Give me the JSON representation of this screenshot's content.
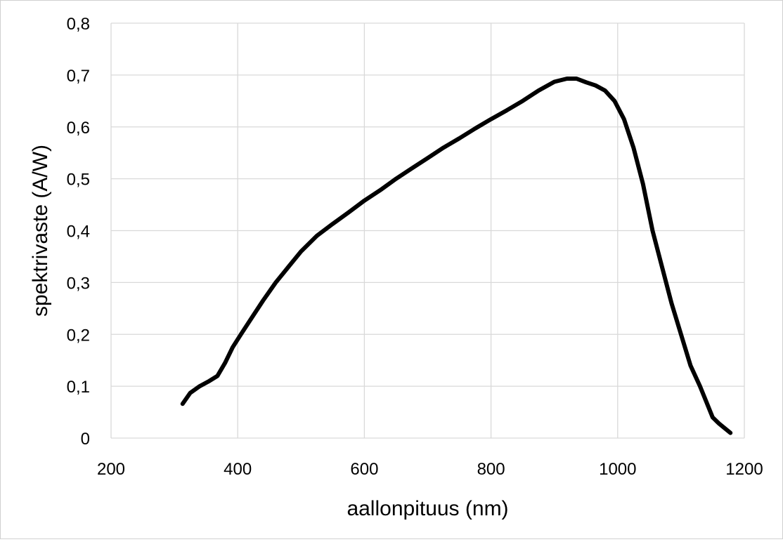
{
  "chart_data": {
    "type": "line",
    "title": "",
    "xlabel": "aallonpituus (nm)",
    "ylabel": "spektrivaste (A/W)",
    "xlim": [
      200,
      1200
    ],
    "ylim": [
      0,
      0.8
    ],
    "x_ticks": [
      "200",
      "400",
      "600",
      "800",
      "1000",
      "1200"
    ],
    "y_ticks": [
      "0",
      "0,1",
      "0,2",
      "0,3",
      "0,4",
      "0,5",
      "0,6",
      "0,7",
      "0,8"
    ],
    "grid": true,
    "legend": "none",
    "series": [
      {
        "color": "#000000",
        "x": [
          313,
          325,
          340,
          355,
          368,
          380,
          392,
          405,
          420,
          440,
          460,
          480,
          500,
          525,
          550,
          575,
          600,
          625,
          650,
          675,
          700,
          725,
          750,
          775,
          800,
          825,
          850,
          875,
          900,
          920,
          935,
          950,
          965,
          980,
          995,
          1010,
          1025,
          1040,
          1055,
          1070,
          1085,
          1100,
          1115,
          1130,
          1140,
          1150,
          1160,
          1170,
          1178
        ],
        "y": [
          0.066,
          0.087,
          0.1,
          0.11,
          0.12,
          0.145,
          0.175,
          0.2,
          0.228,
          0.265,
          0.3,
          0.33,
          0.36,
          0.39,
          0.413,
          0.435,
          0.458,
          0.478,
          0.5,
          0.52,
          0.54,
          0.56,
          0.578,
          0.597,
          0.615,
          0.632,
          0.65,
          0.67,
          0.687,
          0.693,
          0.693,
          0.686,
          0.68,
          0.67,
          0.65,
          0.615,
          0.56,
          0.49,
          0.4,
          0.33,
          0.26,
          0.2,
          0.14,
          0.1,
          0.07,
          0.04,
          0.028,
          0.018,
          0.01
        ]
      }
    ]
  }
}
